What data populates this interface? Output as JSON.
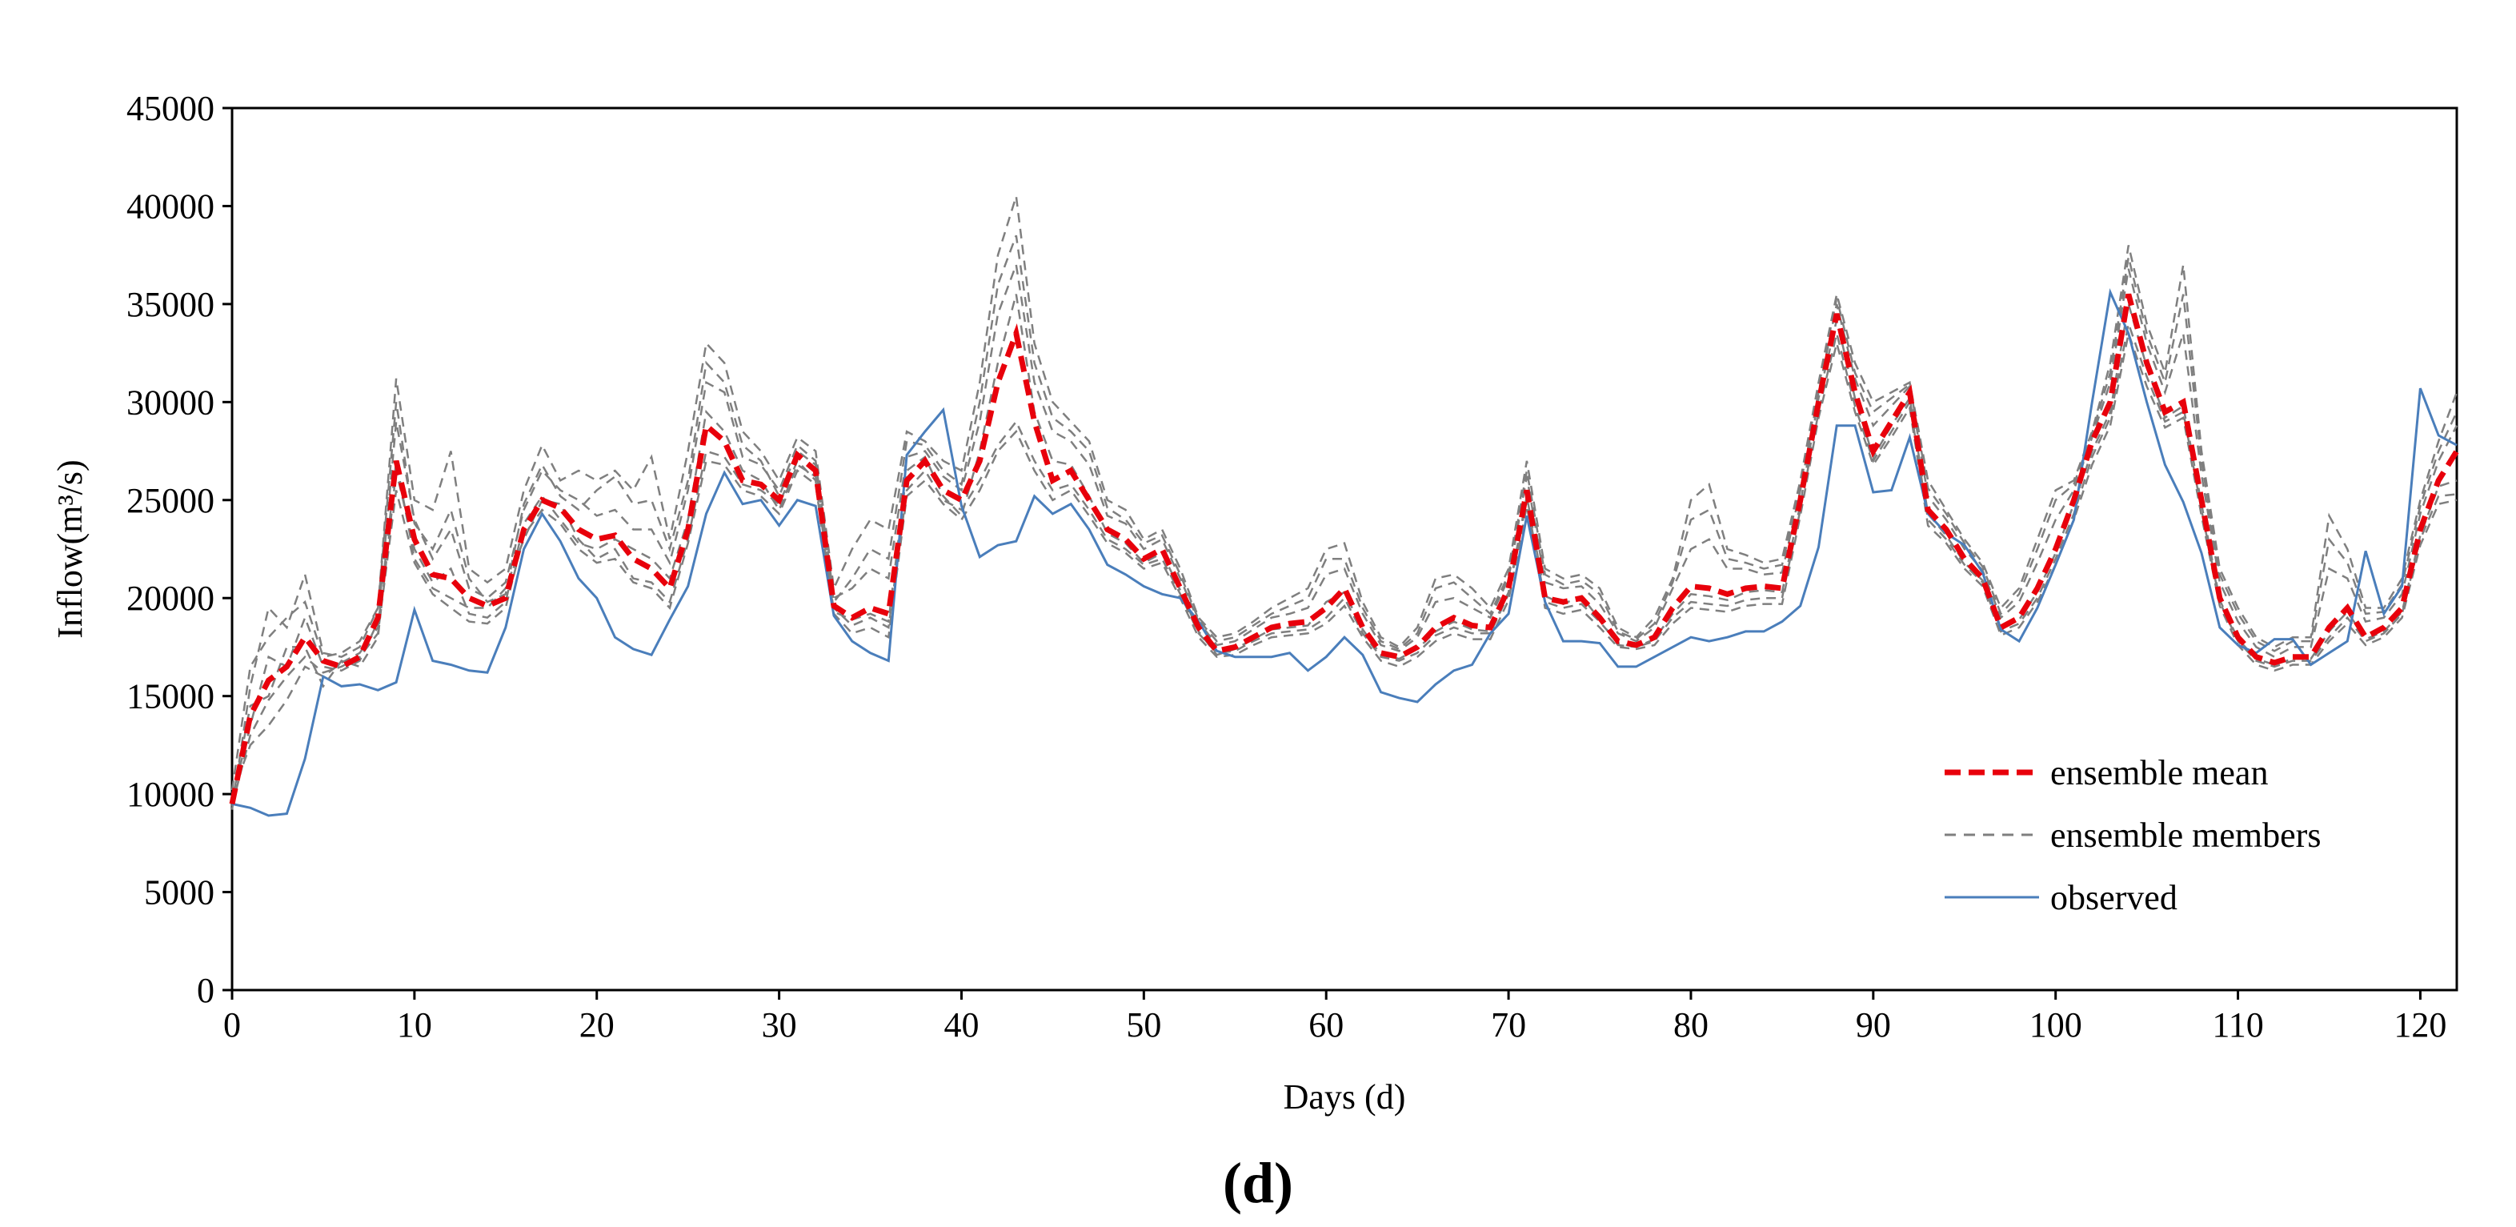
{
  "chart_data": {
    "type": "line",
    "xlabel": "Days (d)",
    "ylabel": "Inflow(m³/s)",
    "panel_label": "(d)",
    "xlim": [
      0,
      122
    ],
    "ylim": [
      0,
      45000
    ],
    "x_ticks": [
      0,
      10,
      20,
      30,
      40,
      50,
      60,
      70,
      80,
      90,
      100,
      110,
      120
    ],
    "y_ticks": [
      0,
      5000,
      10000,
      15000,
      20000,
      25000,
      30000,
      35000,
      40000,
      45000
    ],
    "legend_position": "bottom-right",
    "grid": false,
    "series": [
      {
        "name": "ensemble mean",
        "color": "#e8000b",
        "style": "dashed-bold",
        "values": [
          9500,
          14000,
          15800,
          16500,
          18000,
          16800,
          16500,
          17000,
          19000,
          27000,
          23000,
          21200,
          21000,
          20000,
          19600,
          20000,
          23500,
          25000,
          24600,
          23500,
          23000,
          23200,
          22000,
          21500,
          20500,
          23500,
          28800,
          28000,
          26000,
          25800,
          25000,
          27300,
          26500,
          19600,
          19000,
          19500,
          19200,
          26000,
          27000,
          25500,
          25000,
          27000,
          31000,
          33500,
          29000,
          26000,
          26500,
          25000,
          23500,
          23000,
          22000,
          22500,
          20500,
          18500,
          17300,
          17500,
          18000,
          18500,
          18700,
          18800,
          19500,
          20500,
          18500,
          17200,
          17000,
          17500,
          18500,
          19000,
          18600,
          18500,
          20500,
          25500,
          20000,
          19800,
          20000,
          19000,
          17800,
          17600,
          18000,
          19500,
          20600,
          20500,
          20200,
          20500,
          20600,
          20500,
          25000,
          30000,
          34500,
          30500,
          27500,
          29000,
          30500,
          24500,
          23500,
          22000,
          21000,
          18500,
          19000,
          20500,
          22500,
          25000,
          28000,
          30000,
          35500,
          32000,
          29500,
          30000,
          25000,
          20000,
          18000,
          17000,
          16700,
          17000,
          17000,
          18500,
          19500,
          18000,
          18500,
          19500,
          23500,
          26000,
          27500
        ]
      },
      {
        "name": "observed",
        "color": "#4a7ebb",
        "style": "solid",
        "values": [
          9500,
          9300,
          8900,
          9000,
          11800,
          16000,
          15500,
          15600,
          15300,
          15700,
          19400,
          16800,
          16600,
          16300,
          16200,
          18500,
          22500,
          24300,
          22900,
          21000,
          20000,
          18000,
          17400,
          17100,
          18900,
          20600,
          24300,
          26400,
          24800,
          25000,
          23700,
          25000,
          24700,
          19100,
          17800,
          17200,
          16800,
          27300,
          28500,
          29600,
          24700,
          22100,
          22700,
          22900,
          25200,
          24300,
          24800,
          23500,
          21700,
          21200,
          20600,
          20200,
          20000,
          18800,
          17300,
          17000,
          17000,
          17000,
          17200,
          16300,
          17000,
          18000,
          17100,
          15200,
          14900,
          14700,
          15600,
          16300,
          16600,
          18200,
          19200,
          24200,
          19800,
          17800,
          17800,
          17700,
          16500,
          16500,
          17000,
          17500,
          18000,
          17800,
          18000,
          18300,
          18300,
          18800,
          19600,
          22600,
          28800,
          28800,
          25400,
          25500,
          28200,
          24300,
          23300,
          22700,
          21300,
          18400,
          17800,
          19500,
          21700,
          24000,
          30000,
          35600,
          33500,
          30000,
          26800,
          24900,
          22300,
          18500,
          17600,
          17200,
          17900,
          17900,
          16600,
          17200,
          17800,
          22400,
          19200,
          20600,
          30700,
          28300,
          27800
        ]
      }
    ],
    "ensemble_members": {
      "name": "ensemble members",
      "color": "#7f7f7f",
      "style": "dashed",
      "series": [
        {
          "values": [
            10000,
            12500,
            13500,
            14800,
            16500,
            16000,
            16700,
            17200,
            18500,
            27000,
            22000,
            20500,
            20000,
            19500,
            19500,
            20500,
            23000,
            25000,
            24800,
            23000,
            22000,
            22500,
            21000,
            20800,
            19800,
            23000,
            27500,
            27200,
            25800,
            25500,
            24800,
            27000,
            26000,
            19500,
            18600,
            19000,
            18500,
            25500,
            26500,
            25000,
            24500,
            26000,
            27800,
            29000,
            27000,
            25500,
            25800,
            24500,
            23000,
            22500,
            21700,
            22000,
            20200,
            18200,
            17200,
            17300,
            17800,
            18200,
            18300,
            18400,
            19000,
            20000,
            18200,
            17000,
            16800,
            17200,
            18100,
            18500,
            18200,
            18200,
            20200,
            25000,
            19800,
            19500,
            19700,
            18800,
            17700,
            17500,
            17800,
            19000,
            19800,
            19700,
            19600,
            19900,
            20000,
            20000,
            24500,
            29500,
            33500,
            29800,
            27000,
            28500,
            30000,
            24000,
            23000,
            21700,
            20800,
            18300,
            18700,
            20000,
            22000,
            24300,
            27200,
            29200,
            34000,
            31300,
            29000,
            29500,
            24500,
            19800,
            17800,
            16800,
            16500,
            16800,
            16800,
            18000,
            19000,
            17800,
            18200,
            19200,
            23000,
            25200,
            25300
          ]
        },
        {
          "values": [
            9200,
            15500,
            19500,
            18500,
            21200,
            17200,
            17000,
            17500,
            19500,
            31200,
            25000,
            24500,
            27500,
            21500,
            20800,
            21500,
            25500,
            27800,
            26000,
            26500,
            26000,
            26500,
            25500,
            27200,
            23000,
            27500,
            33000,
            32000,
            28500,
            27500,
            26000,
            28200,
            27500,
            20500,
            22500,
            24000,
            23500,
            28500,
            28000,
            27000,
            26500,
            31000,
            37500,
            40500,
            33000,
            30000,
            29000,
            28000,
            25000,
            24500,
            23000,
            23500,
            21500,
            19000,
            18000,
            18200,
            18800,
            19500,
            20000,
            20500,
            22500,
            22800,
            19800,
            18000,
            17500,
            18500,
            21000,
            21200,
            20500,
            19500,
            21500,
            27000,
            21500,
            21000,
            21200,
            20500,
            18500,
            18000,
            19000,
            21000,
            25000,
            25800,
            22500,
            22200,
            21800,
            22000,
            26000,
            31000,
            35500,
            32000,
            30000,
            30500,
            31000,
            26000,
            24500,
            23000,
            21800,
            19500,
            20500,
            23000,
            25500,
            26000,
            28500,
            32000,
            38000,
            34000,
            31500,
            37000,
            27500,
            21500,
            19500,
            18000,
            17500,
            18000,
            18000,
            24200,
            22500,
            19500,
            19500,
            21000,
            25000,
            28000,
            30500
          ]
        },
        {
          "values": [
            9800,
            13500,
            17000,
            16500,
            19000,
            16500,
            16300,
            16800,
            18800,
            29000,
            24000,
            22000,
            23500,
            20500,
            20000,
            20800,
            24500,
            26500,
            25500,
            25000,
            24200,
            24500,
            23500,
            23500,
            21800,
            25500,
            31000,
            30500,
            27200,
            26800,
            25500,
            27800,
            27000,
            20000,
            20500,
            21500,
            21000,
            27200,
            27500,
            26200,
            25500,
            29000,
            34500,
            37000,
            31000,
            28500,
            28000,
            26800,
            24200,
            23800,
            22500,
            23000,
            21000,
            18800,
            17600,
            17800,
            18400,
            19000,
            19200,
            19500,
            21200,
            21500,
            19200,
            17600,
            17300,
            18000,
            19800,
            20000,
            19500,
            19000,
            21000,
            26200,
            20800,
            20500,
            20600,
            19700,
            18200,
            17800,
            18500,
            20500,
            22500,
            23000,
            21500,
            21500,
            21200,
            21300,
            25500,
            30500,
            35000,
            31200,
            28800,
            29800,
            30800,
            25200,
            24000,
            22500,
            21400,
            19000,
            19800,
            21800,
            24000,
            25500,
            28200,
            31000,
            36800,
            33000,
            30500,
            33500,
            26300,
            20800,
            18800,
            17500,
            17000,
            17500,
            17500,
            21500,
            21000,
            18800,
            19000,
            20200,
            24300,
            27000,
            28800
          ]
        },
        {
          "values": [
            9600,
            14500,
            15000,
            17500,
            17500,
            15500,
            16800,
            16500,
            18000,
            26500,
            22500,
            20800,
            21500,
            19200,
            19000,
            19800,
            23800,
            25200,
            24000,
            22800,
            22500,
            23000,
            22500,
            22000,
            21000,
            24000,
            29500,
            28500,
            26500,
            26000,
            24500,
            26800,
            26200,
            19300,
            18900,
            19200,
            18800,
            26500,
            27200,
            25200,
            24200,
            27500,
            32000,
            35500,
            29500,
            27000,
            26800,
            25200,
            23300,
            22800,
            21800,
            22300,
            20400,
            18300,
            17100,
            17400,
            17900,
            18400,
            18500,
            18600,
            19800,
            20300,
            18400,
            17100,
            16900,
            17400,
            18300,
            18800,
            18400,
            18300,
            20300,
            25200,
            20100,
            19700,
            20100,
            18900,
            17600,
            17500,
            17900,
            19200,
            20200,
            20100,
            19900,
            20300,
            20400,
            20300,
            24800,
            30200,
            34200,
            30200,
            27200,
            28800,
            30200,
            24300,
            23200,
            21800,
            20900,
            18400,
            18900,
            20300,
            22300,
            24800,
            27500,
            29500,
            35000,
            31800,
            29200,
            29800,
            24800,
            19900,
            17900,
            16900,
            16600,
            16900,
            16900,
            18300,
            19300,
            17900,
            18300,
            19300,
            23200,
            25700,
            26000
          ]
        },
        {
          "values": [
            10200,
            16500,
            18000,
            19000,
            19800,
            17000,
            17200,
            17800,
            19500,
            30000,
            23800,
            22500,
            24500,
            21000,
            19800,
            20200,
            24800,
            26800,
            25200,
            24500,
            25500,
            26200,
            24800,
            25000,
            22500,
            26000,
            32000,
            31000,
            27800,
            27000,
            25200,
            27500,
            26800,
            19800,
            21000,
            22500,
            22000,
            28000,
            27800,
            26500,
            25800,
            30000,
            36000,
            38500,
            32000,
            29200,
            28500,
            27500,
            24600,
            24000,
            22800,
            23200,
            21200,
            18900,
            17800,
            18000,
            18600,
            19200,
            19600,
            20000,
            22000,
            22000,
            19500,
            17800,
            17400,
            18200,
            20500,
            20800,
            20000,
            19200,
            21200,
            26500,
            21200,
            20700,
            20900,
            20200,
            18300,
            17900,
            18700,
            20800,
            24000,
            24500,
            22000,
            21800,
            21500,
            21700,
            25700,
            30800,
            35300,
            31500,
            29500,
            30200,
            30900,
            25600,
            24300,
            22800,
            21600,
            19200,
            20200,
            22500,
            25000,
            25800,
            28400,
            31500,
            37400,
            33500,
            31000,
            35500,
            27000,
            21200,
            19200,
            17800,
            17300,
            17800,
            17800,
            23000,
            21800,
            19200,
            19300,
            20700,
            24700,
            27500,
            29500
          ]
        },
        {
          "values": [
            9400,
            13000,
            14800,
            16000,
            17000,
            16200,
            16500,
            17000,
            18200,
            25500,
            21800,
            20200,
            19500,
            18800,
            18700,
            19500,
            23200,
            24500,
            23800,
            22500,
            21800,
            22000,
            20800,
            20500,
            19500,
            22800,
            27000,
            26800,
            25500,
            25200,
            24300,
            26500,
            25800,
            19200,
            18200,
            18500,
            18000,
            25200,
            26000,
            24800,
            24000,
            25500,
            27500,
            28500,
            26500,
            25000,
            25500,
            24200,
            22800,
            22300,
            21500,
            21800,
            20000,
            18000,
            17000,
            17100,
            17600,
            18000,
            18100,
            18200,
            18700,
            19600,
            18000,
            16800,
            16500,
            17000,
            17800,
            18200,
            17900,
            17900,
            19900,
            24700,
            19500,
            19200,
            19400,
            18500,
            17500,
            17400,
            17600,
            18700,
            19500,
            19400,
            19300,
            19600,
            19700,
            19700,
            24200,
            29200,
            33000,
            29500,
            26800,
            28200,
            29700,
            23700,
            22800,
            21500,
            20600,
            18100,
            18500,
            19800,
            21700,
            24000,
            26800,
            28800,
            33500,
            30800,
            28700,
            29200,
            24200,
            19600,
            17600,
            16600,
            16300,
            16600,
            16600,
            17800,
            18700,
            17600,
            18000,
            19000,
            22700,
            24800,
            25000
          ]
        }
      ]
    }
  }
}
